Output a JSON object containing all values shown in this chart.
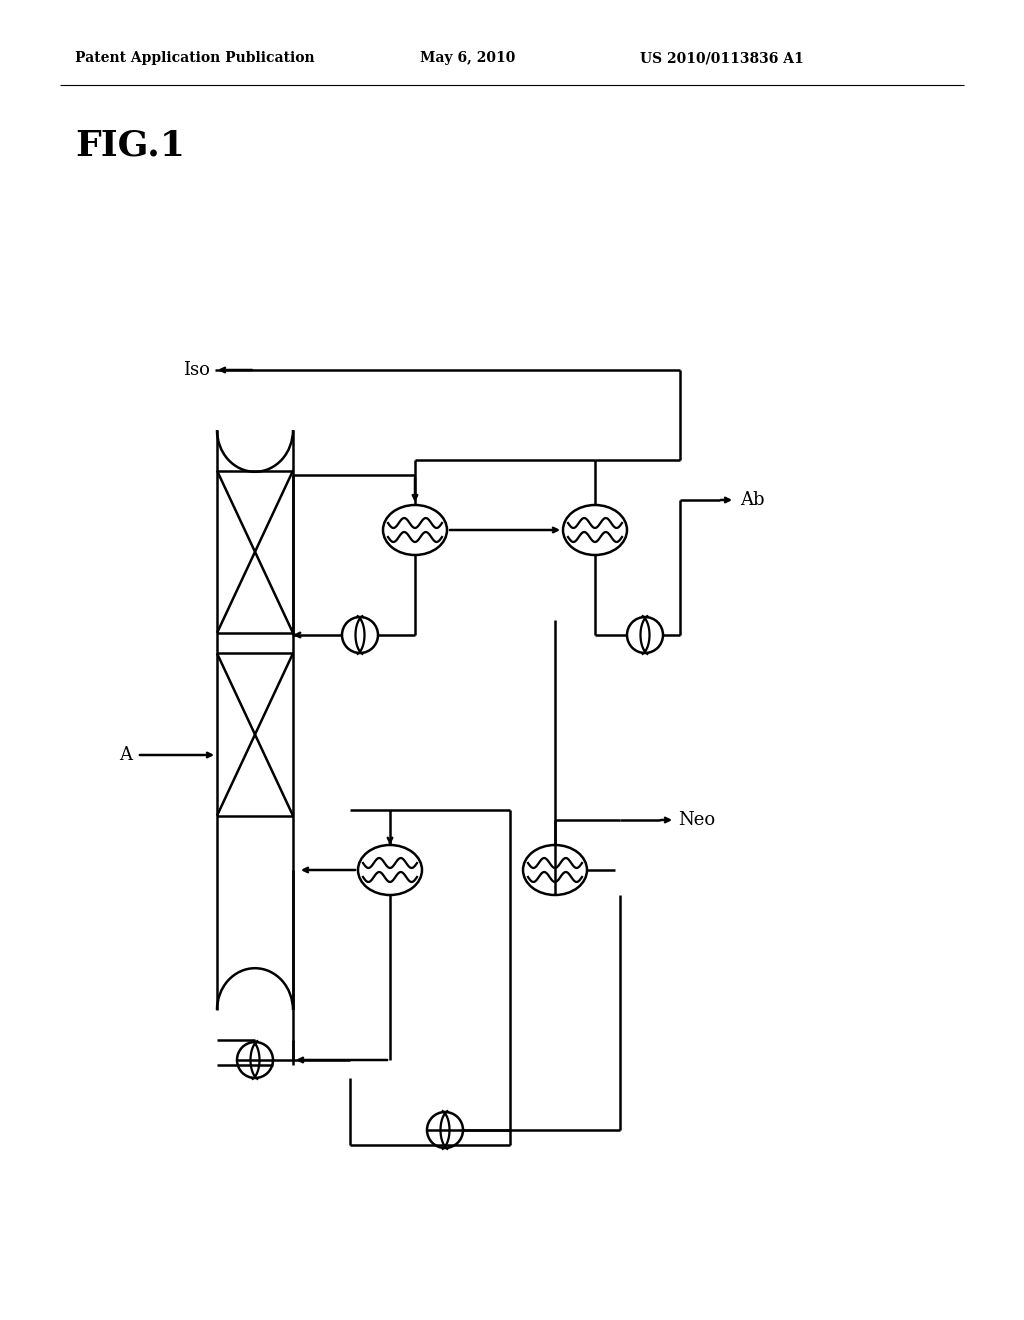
{
  "bg_color": "#ffffff",
  "header_left": "Patent Application Publication",
  "header_mid": "May 6, 2010",
  "header_right": "US 2010/0113836 A1",
  "fig_label": "FIG.1",
  "label_iso": "Iso",
  "label_ab": "Ab",
  "label_a": "A",
  "label_neo": "Neo",
  "line_color": "#000000",
  "lw": 1.8
}
